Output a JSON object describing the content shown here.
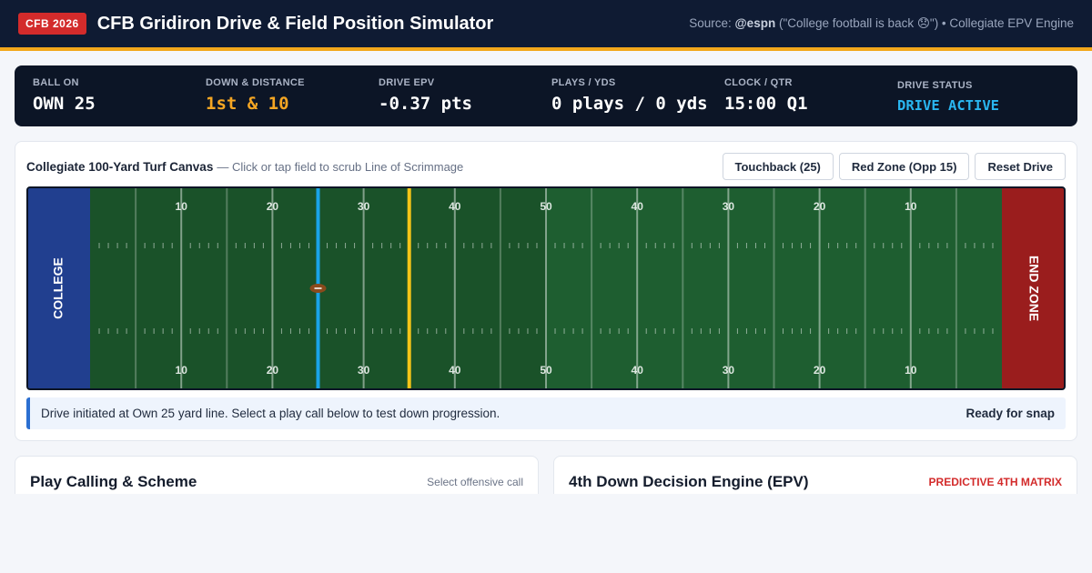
{
  "header": {
    "badge": "CFB 2026",
    "title": "CFB Gridiron Drive & Field Position Simulator",
    "source_prefix": "Source: ",
    "source_handle": "@espn",
    "source_suffix": " (\"College football is back 😞\") • Collegiate EPV Engine"
  },
  "scoreboard": {
    "ball_on": {
      "label": "BALL ON",
      "value": "OWN 25"
    },
    "down_distance": {
      "label": "DOWN & DISTANCE",
      "value": "1st & 10"
    },
    "drive_epv": {
      "label": "DRIVE EPV",
      "value": "-0.37 pts"
    },
    "plays_yds": {
      "label": "PLAYS / YDS",
      "value": "0 plays / 0 yds"
    },
    "clock": {
      "label": "CLOCK / QTR",
      "value": "15:00 Q1"
    },
    "status": {
      "label": "DRIVE STATUS",
      "value": "DRIVE ACTIVE"
    }
  },
  "field_card": {
    "title": "Collegiate 100-Yard Turf Canvas",
    "hint": "— Click or tap field to scrub Line of Scrimmage",
    "buttons": {
      "touchback": "Touchback (25)",
      "red_zone": "Red Zone (Opp 15)",
      "reset": "Reset Drive"
    },
    "field": {
      "left_endzone": "COLLEGE",
      "right_endzone": "END ZONE",
      "yard_numbers": [
        "10",
        "20",
        "30",
        "40",
        "50",
        "40",
        "30",
        "20",
        "10"
      ],
      "line_of_scrimmage_yard": 25,
      "first_down_yard": 35,
      "colors": {
        "turf_dark": "#1a5229",
        "turf_light": "#1e5e30",
        "left_endzone": "#213f8f",
        "right_endzone": "#9a1d1d",
        "scrimmage_line": "#1aa3e8",
        "first_down_line": "#f5c518"
      }
    },
    "log": {
      "text": "Drive initiated at Own 25 yard line. Select a play call below to test down progression.",
      "status": "Ready for snap"
    }
  },
  "panels": {
    "play_calling": {
      "title": "Play Calling & Scheme",
      "tag": "Select offensive call"
    },
    "fourth_down": {
      "title": "4th Down Decision Engine (EPV)",
      "tag": "PREDICTIVE 4TH MATRIX"
    }
  }
}
